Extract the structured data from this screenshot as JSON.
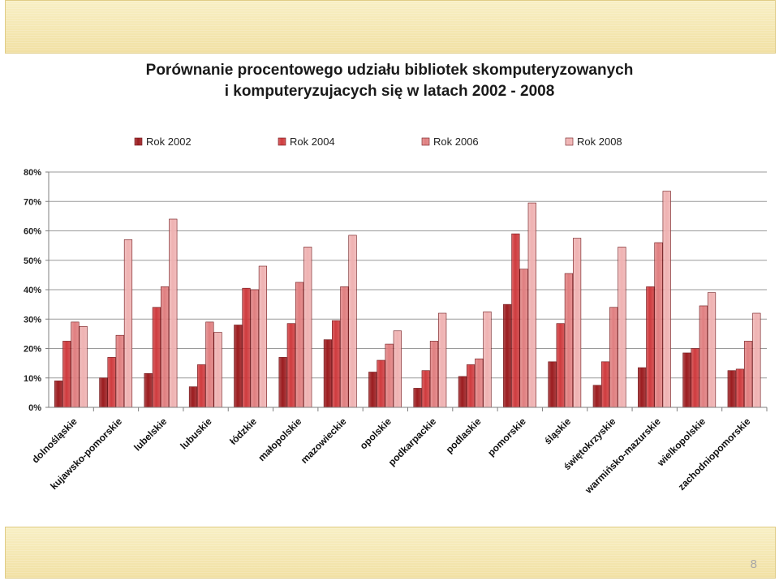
{
  "slide": {
    "page_number": "8"
  },
  "chart_data": {
    "type": "bar",
    "title_lines": [
      "Porównanie procentowego udziału bibliotek skomputeryzowanych",
      "i komputeryzujacych się  w latach 2002 - 2008"
    ],
    "xlabel": "",
    "ylabel": "",
    "ylim": [
      0,
      80
    ],
    "y_ticks": [
      0,
      10,
      20,
      30,
      40,
      50,
      60,
      70,
      80
    ],
    "y_tick_labels": [
      "0%",
      "10%",
      "20%",
      "30%",
      "40%",
      "50%",
      "60%",
      "70%",
      "80%"
    ],
    "grid": true,
    "legend_position": "top",
    "categories": [
      "dolnośląskie",
      "kujawsko-pomorskie",
      "lubelskie",
      "lubuskie",
      "łódzkie",
      "małopolskie",
      "mazowieckie",
      "opolskie",
      "podkarpackie",
      "podlaskie",
      "pomorskie",
      "śląskie",
      "świętokrzyskie",
      "warmińsko-mazurskie",
      "wielkopolskie",
      "zachodniopomorskie"
    ],
    "series": [
      {
        "name": "Rok 2002",
        "color": "#9b1c1f",
        "values": [
          9,
          10,
          11.5,
          7,
          28,
          17,
          23,
          12,
          6.5,
          10.5,
          35,
          15.5,
          7.5,
          13.5,
          18.5,
          12.5
        ]
      },
      {
        "name": "Rok 2004",
        "color": "#cf3b3e",
        "values": [
          22.5,
          17,
          34,
          14.5,
          40.5,
          28.5,
          29.5,
          16,
          12.5,
          14.5,
          59,
          28.5,
          15.5,
          41,
          20,
          13
        ]
      },
      {
        "name": "Rok 2006",
        "color": "#e07f80",
        "values": [
          29,
          24.5,
          41,
          29,
          40,
          42.5,
          41,
          21.5,
          22.5,
          16.5,
          47,
          45.5,
          34,
          56,
          34.5,
          22.5
        ]
      },
      {
        "name": "Rok 2008",
        "color": "#efb2b2",
        "values": [
          27.5,
          57,
          64,
          25.5,
          48,
          54.5,
          58.5,
          26,
          32,
          32.5,
          69.5,
          57.5,
          54.5,
          73.5,
          39,
          32
        ]
      }
    ]
  }
}
